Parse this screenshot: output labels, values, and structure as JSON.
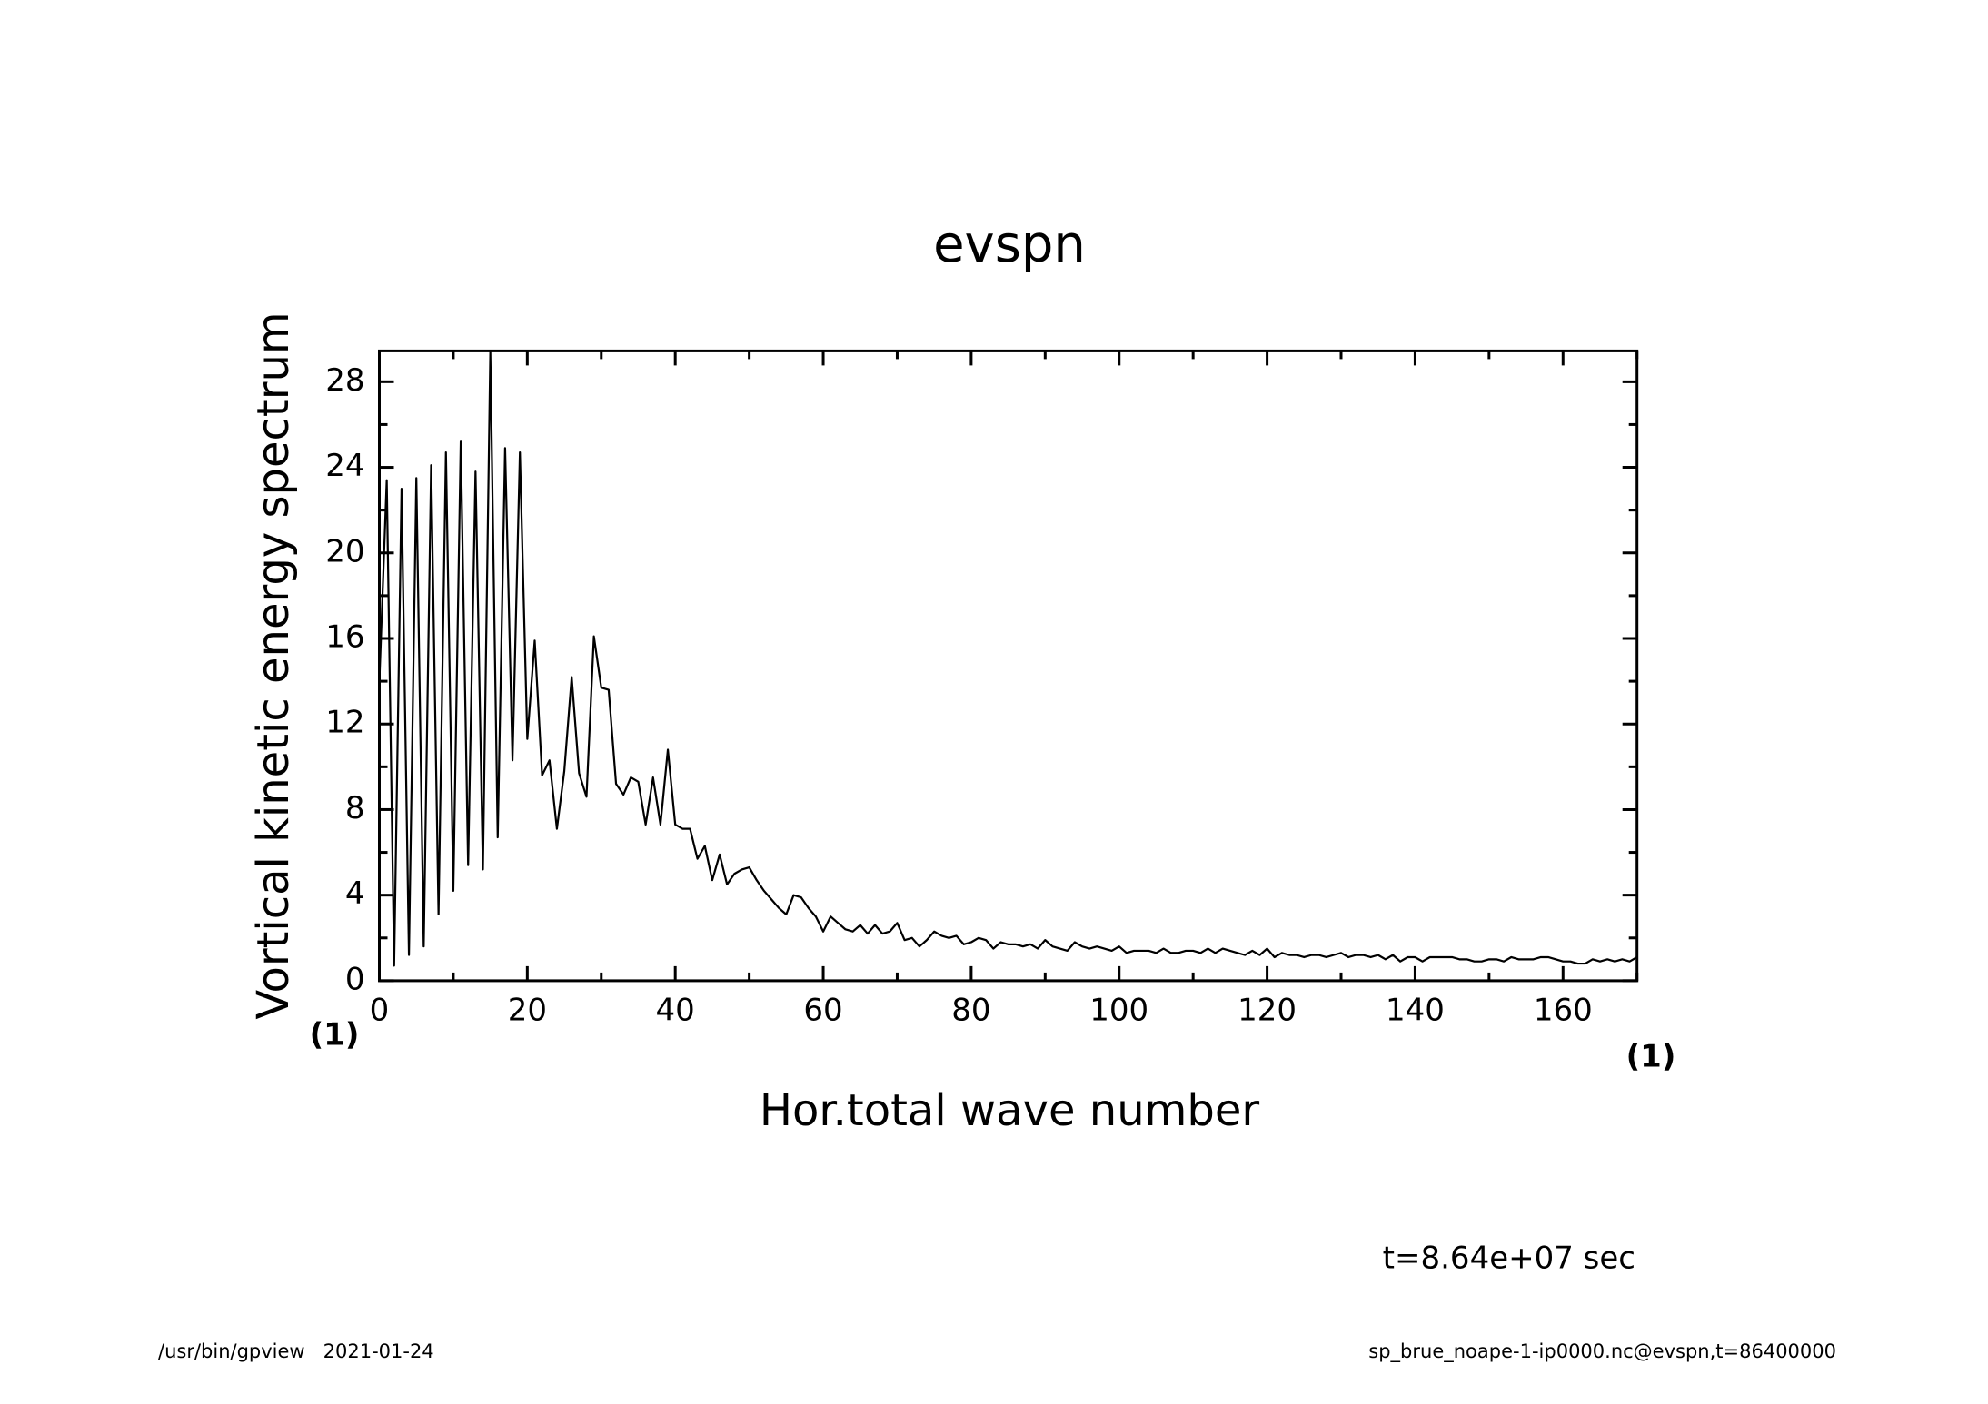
{
  "chart_data": {
    "type": "line",
    "title": "evspn",
    "x_label": "Hor.total wave number",
    "y_label": "Vortical kinetic energy spectrum",
    "x_unit": "(1)",
    "y_unit": "(1)",
    "time_label": "t=8.64e+07 sec",
    "footer_left": "/usr/bin/gpview   2021-01-24",
    "footer_right": "sp_brue_noape-1-ip0000.nc@evspn,t=86400000",
    "x": [
      0,
      1,
      2,
      3,
      4,
      5,
      6,
      7,
      8,
      9,
      10,
      11,
      12,
      13,
      14,
      15,
      16,
      17,
      18,
      19,
      20,
      21,
      22,
      23,
      24,
      25,
      26,
      27,
      28,
      29,
      30,
      31,
      32,
      33,
      34,
      35,
      36,
      37,
      38,
      39,
      40,
      41,
      42,
      43,
      44,
      45,
      46,
      47,
      48,
      49,
      50,
      51,
      52,
      53,
      54,
      55,
      56,
      57,
      58,
      59,
      60,
      61,
      62,
      63,
      64,
      65,
      66,
      67,
      68,
      69,
      70,
      71,
      72,
      73,
      74,
      75,
      76,
      77,
      78,
      79,
      80,
      81,
      82,
      83,
      84,
      85,
      86,
      87,
      88,
      89,
      90,
      91,
      92,
      93,
      94,
      95,
      96,
      97,
      98,
      99,
      100,
      101,
      102,
      103,
      104,
      105,
      106,
      107,
      108,
      109,
      110,
      111,
      112,
      113,
      114,
      115,
      116,
      117,
      118,
      119,
      120,
      121,
      122,
      123,
      124,
      125,
      126,
      127,
      128,
      129,
      130,
      131,
      132,
      133,
      134,
      135,
      136,
      137,
      138,
      139,
      140,
      141,
      142,
      143,
      144,
      145,
      146,
      147,
      148,
      149,
      150,
      151,
      152,
      153,
      154,
      155,
      156,
      157,
      158,
      159,
      160,
      161,
      162,
      163,
      164,
      165,
      166,
      167,
      168,
      169,
      170
    ],
    "series": [
      {
        "name": "evspn",
        "color": "#000000",
        "values": [
          14,
          23.4,
          0.7,
          23,
          1.2,
          23.5,
          1.6,
          24.1,
          3.1,
          24.7,
          4.2,
          25.2,
          5.4,
          23.8,
          5.2,
          29.4,
          6.7,
          24.9,
          10.3,
          24.7,
          11.3,
          15.9,
          9.6,
          10.3,
          7.1,
          9.8,
          14.2,
          9.7,
          8.6,
          16.1,
          13.7,
          13.6,
          9.2,
          8.7,
          9.5,
          9.3,
          7.3,
          9.5,
          7.3,
          10.8,
          7.3,
          7.1,
          7.1,
          5.7,
          6.3,
          4.7,
          5.9,
          4.5,
          5.0,
          5.2,
          5.3,
          4.7,
          4.2,
          3.8,
          3.4,
          3.1,
          4.0,
          3.9,
          3.4,
          3.0,
          2.3,
          3.0,
          2.7,
          2.4,
          2.3,
          2.6,
          2.2,
          2.6,
          2.2,
          2.3,
          2.7,
          1.9,
          2.0,
          1.6,
          1.9,
          2.3,
          2.1,
          2.0,
          2.1,
          1.7,
          1.8,
          2.0,
          1.9,
          1.5,
          1.8,
          1.7,
          1.7,
          1.6,
          1.7,
          1.5,
          1.9,
          1.6,
          1.5,
          1.4,
          1.8,
          1.6,
          1.5,
          1.6,
          1.5,
          1.4,
          1.6,
          1.3,
          1.4,
          1.4,
          1.4,
          1.3,
          1.5,
          1.3,
          1.3,
          1.4,
          1.4,
          1.3,
          1.5,
          1.3,
          1.5,
          1.4,
          1.3,
          1.2,
          1.4,
          1.2,
          1.5,
          1.1,
          1.3,
          1.2,
          1.2,
          1.1,
          1.2,
          1.2,
          1.1,
          1.2,
          1.3,
          1.1,
          1.2,
          1.2,
          1.1,
          1.2,
          1.0,
          1.2,
          0.9,
          1.1,
          1.1,
          0.9,
          1.1,
          1.1,
          1.1,
          1.1,
          1.0,
          1.0,
          0.9,
          0.9,
          1.0,
          1.0,
          0.9,
          1.1,
          1.0,
          1.0,
          1.0,
          1.1,
          1.1,
          1.0,
          0.9,
          0.9,
          0.8,
          0.8,
          1.0,
          0.9,
          1.0,
          0.9,
          1.0,
          0.9,
          1.1
        ]
      }
    ],
    "xlim": [
      0,
      170
    ],
    "ylim": [
      0,
      29.44
    ],
    "xticks": [
      0,
      20,
      40,
      60,
      80,
      100,
      120,
      140,
      160
    ],
    "yticks": [
      0,
      4,
      8,
      12,
      16,
      20,
      24,
      28
    ],
    "xticks_minor": [
      10,
      30,
      50,
      70,
      90,
      110,
      130,
      150,
      170
    ],
    "yticks_minor": [
      2,
      6,
      10,
      14,
      18,
      22,
      26
    ]
  }
}
